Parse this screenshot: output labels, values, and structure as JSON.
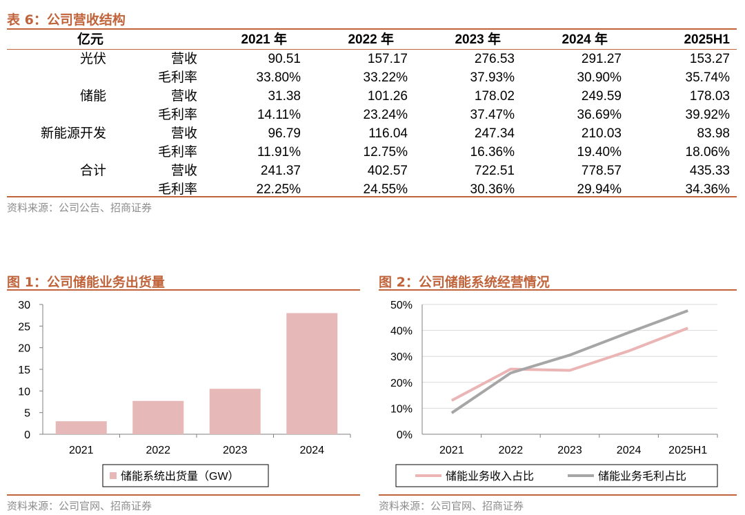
{
  "table": {
    "title": "表 6：公司营收结构",
    "unit": "亿元",
    "years": [
      "2021 年",
      "2022 年",
      "2023 年",
      "2024 年",
      "2025H1"
    ],
    "rows": [
      {
        "segment": "光伏",
        "metric": "营收",
        "values": [
          "90.51",
          "157.17",
          "276.53",
          "291.27",
          "153.27"
        ]
      },
      {
        "segment": "",
        "metric": "毛利率",
        "values": [
          "33.80%",
          "33.22%",
          "37.93%",
          "30.90%",
          "35.74%"
        ]
      },
      {
        "segment": "储能",
        "metric": "营收",
        "values": [
          "31.38",
          "101.26",
          "178.02",
          "249.59",
          "178.03"
        ]
      },
      {
        "segment": "",
        "metric": "毛利率",
        "values": [
          "14.11%",
          "23.24%",
          "37.47%",
          "36.69%",
          "39.92%"
        ]
      },
      {
        "segment": "新能源开发",
        "metric": "营收",
        "values": [
          "96.79",
          "116.04",
          "247.34",
          "210.03",
          "83.98"
        ]
      },
      {
        "segment": "",
        "metric": "毛利率",
        "values": [
          "11.91%",
          "12.75%",
          "16.36%",
          "19.40%",
          "18.06%"
        ]
      },
      {
        "segment": "合计",
        "metric": "营收",
        "values": [
          "241.37",
          "402.57",
          "722.51",
          "778.57",
          "435.33"
        ]
      },
      {
        "segment": "",
        "metric": "毛利率",
        "values": [
          "22.25%",
          "24.55%",
          "30.36%",
          "29.94%",
          "34.36%"
        ]
      }
    ],
    "source": "资料来源：公司公告、招商证券"
  },
  "figure1": {
    "title": "图 1：公司储能业务出货量",
    "source": "资料来源：公司官网、招商证券"
  },
  "figure2": {
    "title": "图 2：公司储能系统经营情况",
    "source": "资料来源：公司官网、招商证券"
  },
  "colors": {
    "accent": "#c0633a",
    "bar": "#e6b8b7",
    "line_revenue": "#eab5b4",
    "line_margin": "#a6a6a6",
    "axis": "#7f7f7f",
    "grid": "#d9d9d9"
  },
  "chart_data": [
    {
      "type": "bar",
      "categories": [
        "2021",
        "2022",
        "2023",
        "2024"
      ],
      "series": [
        {
          "name": "储能系统出货量（GW）",
          "values": [
            3.0,
            7.7,
            10.5,
            28.0
          ]
        }
      ],
      "yticks": [
        "0",
        "5",
        "10",
        "15",
        "20",
        "25",
        "30"
      ],
      "ylim": [
        0,
        30
      ],
      "grid": false,
      "legend": "bottom"
    },
    {
      "type": "line",
      "categories": [
        "2021",
        "2022",
        "2023",
        "2024",
        "2025H1"
      ],
      "series": [
        {
          "name": "储能业务收入占比",
          "values": [
            0.13,
            0.251,
            0.246,
            0.321,
            0.409
          ]
        },
        {
          "name": "储能业务毛利占比",
          "values": [
            0.082,
            0.236,
            0.305,
            0.392,
            0.476
          ]
        }
      ],
      "yticks": [
        "0%",
        "10%",
        "20%",
        "30%",
        "40%",
        "50%"
      ],
      "ylim": [
        0,
        0.5
      ],
      "grid": true,
      "legend": "bottom"
    }
  ]
}
